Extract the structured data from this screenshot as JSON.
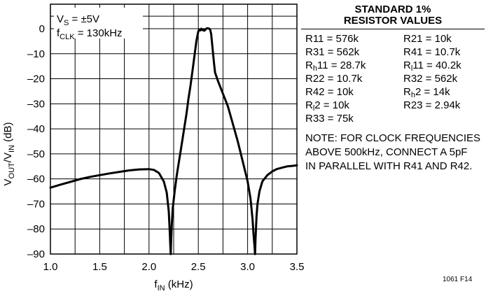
{
  "chart_data": {
    "type": "line",
    "xlabel": "f",
    "xlabel_sub": "IN",
    "xlabel_unit": " (kHz)",
    "ylabel": "V",
    "ylabel_sub1": "OUT",
    "ylabel_mid": "/V",
    "ylabel_sub2": "IN",
    "ylabel_unit": " (dB)",
    "xlim": [
      1.0,
      3.5
    ],
    "ylim": [
      -90,
      5
    ],
    "xticks": [
      "1.0",
      "1.5",
      "2.0",
      "2.5",
      "3.0",
      "3.5"
    ],
    "xtick_values": [
      1.0,
      1.5,
      2.0,
      2.5,
      3.0,
      3.5
    ],
    "yticks": [
      "0",
      "–10",
      "–20",
      "–30",
      "–40",
      "–50",
      "–60",
      "–70",
      "–80",
      "–90"
    ],
    "ytick_values": [
      0,
      -10,
      -20,
      -30,
      -40,
      -50,
      -60,
      -70,
      -80,
      -90
    ],
    "grid": true,
    "conditions": {
      "vs": "V",
      "vs_sub": "S",
      "vs_val": " = ±5V",
      "fclk": "f",
      "fclk_sub": "CLK",
      "fclk_val": " = 130kHz"
    },
    "series": [
      {
        "x": [
          1.0,
          1.1,
          1.2,
          1.3,
          1.4,
          1.5,
          1.6,
          1.7,
          1.8,
          1.9,
          2.0,
          2.05,
          2.1,
          2.15,
          2.18,
          2.2,
          2.21,
          2.215,
          2.22
        ],
        "y": [
          -63.5,
          -62.3,
          -61.2,
          -60.1,
          -59.2,
          -58.5,
          -57.8,
          -57.2,
          -56.6,
          -56.2,
          -56.1,
          -56.4,
          -57.6,
          -61,
          -65.5,
          -73,
          -81,
          -86,
          -90
        ]
      },
      {
        "x": [
          2.22,
          2.225,
          2.23,
          2.24,
          2.26,
          2.28,
          2.3,
          2.32,
          2.34,
          2.36,
          2.38,
          2.4,
          2.42,
          2.44,
          2.46,
          2.48,
          2.5,
          2.51,
          2.52,
          2.53,
          2.54,
          2.55,
          2.56,
          2.57,
          2.58,
          2.59,
          2.6,
          2.61,
          2.62,
          2.63,
          2.64,
          2.65,
          2.66,
          2.67,
          2.7,
          2.75,
          2.8,
          2.85,
          2.9,
          2.95,
          3.0,
          3.03,
          3.05,
          3.06,
          3.07,
          3.075
        ],
        "y": [
          -90,
          -84,
          -79,
          -72,
          -65,
          -59,
          -54,
          -49,
          -44,
          -39,
          -34,
          -28,
          -23,
          -17,
          -11,
          -5,
          -1,
          -0.5,
          -0.7,
          0,
          -0.6,
          -0.2,
          -0.8,
          -0.5,
          0,
          0.2,
          0.1,
          0,
          -0.4,
          -2,
          -6,
          -10,
          -14,
          -17.5,
          -21,
          -26,
          -31,
          -38,
          -45,
          -53,
          -61,
          -68,
          -76,
          -82,
          -87,
          -90
        ]
      },
      {
        "x": [
          3.075,
          3.08,
          3.09,
          3.1,
          3.12,
          3.15,
          3.2,
          3.25,
          3.3,
          3.35,
          3.4,
          3.45,
          3.5
        ],
        "y": [
          -90,
          -84,
          -75,
          -70,
          -65,
          -61,
          -58.5,
          -57,
          -56,
          -55.5,
          -55,
          -54.8,
          -54.6
        ]
      }
    ]
  },
  "resistor_table": {
    "title_line1": "STANDARD 1%",
    "title_line2": "RESISTOR VALUES",
    "r11": "R11 = 576k",
    "r21": "R21 = 10k",
    "r31": "R31 = 562k",
    "r41": "R41 = 10.7k",
    "rh11_main": "R",
    "rh11_sub": "h",
    "rh11_rest": "11 = 28.7k",
    "rl11_main": "R",
    "rl11_sub": "l",
    "rl11_rest": "11 = 40.2k",
    "r22": "R22 = 10.7k",
    "r32": "R32 = 562k",
    "r42": "R42 = 10k",
    "rh2_main": "R",
    "rh2_sub": "h",
    "rh2_rest": "2 = 14k",
    "rl2_main": "R",
    "rl2_sub": "l",
    "rl2_rest": "2 = 10k",
    "r23": "R23 = 2.94k",
    "r33": "R33 = 75k"
  },
  "note": {
    "line1": "NOTE: FOR CLOCK FREQUENCIES",
    "line2": "ABOVE 500kHz, CONNECT A 5pF",
    "line3": "IN PARALLEL WITH R41 AND R42."
  },
  "figure_id": "1061 F14"
}
